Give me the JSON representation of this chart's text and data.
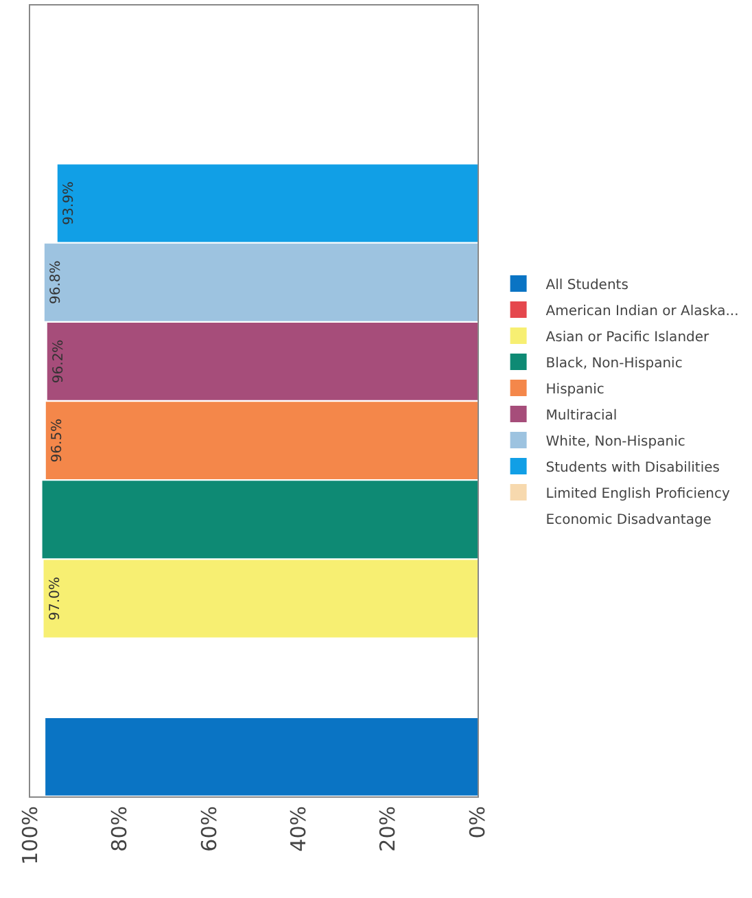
{
  "chart_data": {
    "type": "bar",
    "orientation": "horizontal",
    "categories": [
      null,
      null,
      null,
      null,
      null,
      null,
      null,
      null,
      null,
      null
    ],
    "series": [
      {
        "name": "All Students",
        "color": "#0a74c4",
        "values": [
          null,
          null,
          null,
          null,
          null,
          null,
          null,
          null,
          null,
          96.6
        ],
        "value_labels": [
          null,
          null,
          null,
          null,
          null,
          null,
          null,
          null,
          null,
          null
        ]
      },
      {
        "name": "American Indian or Alaska...",
        "color": "#e5474d",
        "values": [
          null,
          null,
          null,
          null,
          null,
          null,
          null,
          null,
          null,
          null
        ]
      },
      {
        "name": "Asian or Pacific Islander",
        "color": "#f7ef72",
        "values": [
          null,
          null,
          null,
          null,
          null,
          null,
          null,
          97.0,
          null,
          null
        ],
        "value_labels": [
          null,
          null,
          null,
          null,
          null,
          null,
          null,
          "97.0%",
          null,
          null
        ]
      },
      {
        "name": "Black, Non-Hispanic",
        "color": "#0e8a74",
        "values": [
          null,
          null,
          null,
          null,
          null,
          null,
          97.3,
          null,
          null,
          null
        ],
        "value_labels": [
          null,
          null,
          null,
          null,
          null,
          null,
          null,
          null,
          null,
          null
        ]
      },
      {
        "name": "Hispanic",
        "color": "#f4874a",
        "values": [
          null,
          null,
          null,
          null,
          null,
          96.5,
          null,
          null,
          null,
          null
        ],
        "value_labels": [
          null,
          null,
          null,
          null,
          null,
          "96.5%",
          null,
          null,
          null,
          null
        ]
      },
      {
        "name": "Multiracial",
        "color": "#a64d7a",
        "values": [
          null,
          null,
          null,
          null,
          96.2,
          null,
          null,
          null,
          null,
          null
        ],
        "value_labels": [
          null,
          null,
          null,
          null,
          "96.2%",
          null,
          null,
          null,
          null,
          null
        ]
      },
      {
        "name": "White, Non-Hispanic",
        "color": "#9dc3e0",
        "values": [
          null,
          null,
          null,
          96.8,
          null,
          null,
          null,
          null,
          null,
          null
        ],
        "value_labels": [
          null,
          null,
          null,
          "96.8%",
          null,
          null,
          null,
          null,
          null,
          null
        ]
      },
      {
        "name": "Students with Disabilities",
        "color": "#119fe6",
        "values": [
          null,
          null,
          93.9,
          null,
          null,
          null,
          null,
          null,
          null,
          null
        ],
        "value_labels": [
          null,
          null,
          "93.9%",
          null,
          null,
          null,
          null,
          null,
          null,
          null
        ]
      },
      {
        "name": "Limited English Proficiency",
        "color": "#f7d9ae",
        "values": [
          null,
          null,
          null,
          null,
          null,
          null,
          null,
          null,
          null,
          null
        ]
      },
      {
        "name": "Economic Disadvantage",
        "values": [
          null,
          null,
          null,
          null,
          null,
          null,
          null,
          null,
          null,
          null
        ]
      }
    ],
    "xlim": [
      100,
      0
    ],
    "xticks": [
      {
        "value": 0,
        "label": "0%"
      },
      {
        "value": 20,
        "label": "20%"
      },
      {
        "value": 40,
        "label": "40%"
      },
      {
        "value": 60,
        "label": "60%"
      },
      {
        "value": 80,
        "label": "80%"
      },
      {
        "value": 100,
        "label": "100%"
      }
    ],
    "legend": "right",
    "tick_labels": "x"
  }
}
